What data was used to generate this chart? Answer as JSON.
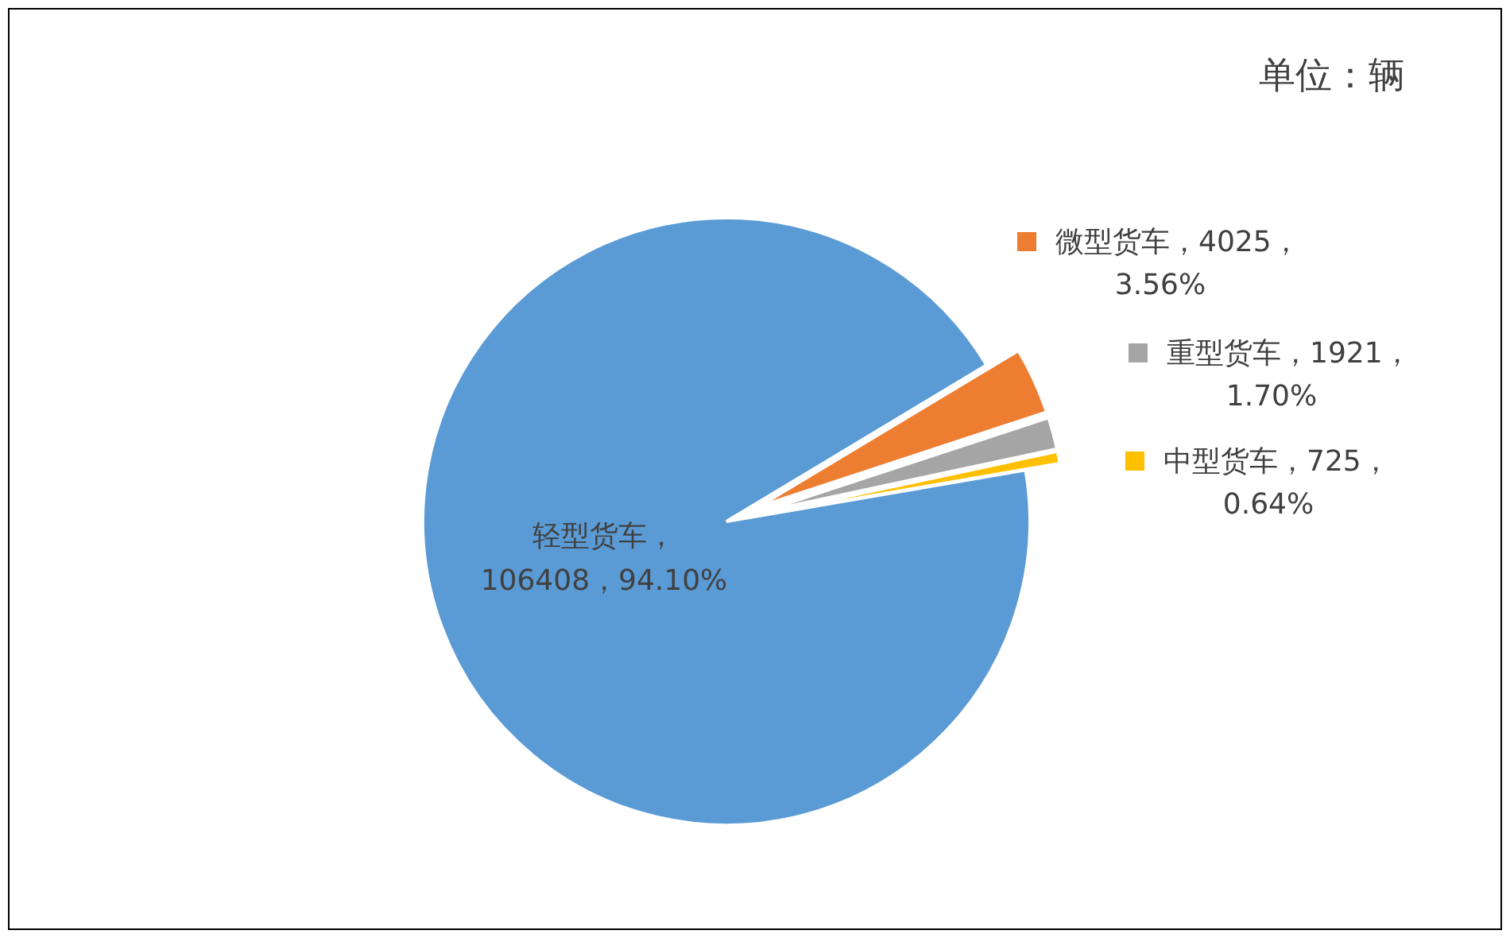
{
  "chart_data": {
    "type": "pie",
    "categories": [
      "微型货车",
      "重型货车",
      "中型货车",
      "轻型货车"
    ],
    "values": [
      4025,
      1921,
      725,
      106408
    ],
    "colors": [
      "#ed7d31",
      "#a5a5a5",
      "#ffc000",
      "#5b9bd5"
    ],
    "value_labels": [
      "，4025，\n3.56%",
      "，1921，\n1.70%",
      "，725，\n0.64%",
      "，\n106408，94.10%"
    ],
    "annotations": [
      "单位：辆"
    ],
    "legend": "right"
  }
}
